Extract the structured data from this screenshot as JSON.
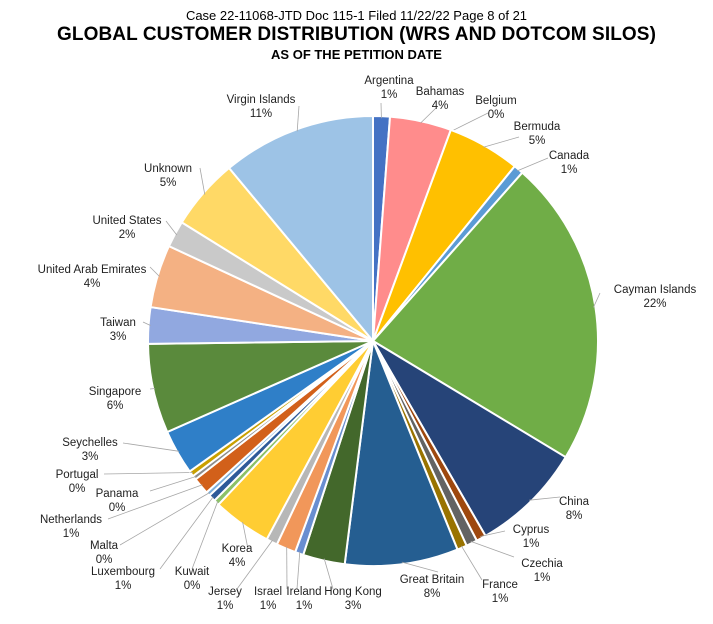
{
  "header": "Case 22-11068-JTD    Doc 115-1    Filed 11/22/22    Page 8 of 21",
  "chart_data": {
    "type": "pie",
    "title": "GLOBAL CUSTOMER DISTRIBUTION (WRS AND DOTCOM SILOS)",
    "subtitle": "AS OF THE PETITION DATE",
    "start_angle_deg": 0,
    "direction": "clockwise",
    "slices": [
      {
        "name": "Argentina",
        "label": "1%",
        "value": 1.2,
        "color": "#4472c4"
      },
      {
        "name": "Bahamas",
        "label": "4%",
        "value": 4.4,
        "color": "#ff8c8c"
      },
      {
        "name": "Belgium",
        "label": "0%",
        "value": 0.0,
        "color": "#ff8c00"
      },
      {
        "name": "Bermuda",
        "label": "5%",
        "value": 5.2,
        "color": "#ffc000"
      },
      {
        "name": "Canada",
        "label": "1%",
        "value": 0.7,
        "color": "#5b9bd5"
      },
      {
        "name": "Cayman Islands",
        "label": "22%",
        "value": 22.0,
        "color": "#70ad47"
      },
      {
        "name": "China",
        "label": "8%",
        "value": 8.0,
        "color": "#264478"
      },
      {
        "name": "Cyprus",
        "label": "1%",
        "value": 0.7,
        "color": "#9e480e"
      },
      {
        "name": "Czechia",
        "label": "1%",
        "value": 0.8,
        "color": "#636363"
      },
      {
        "name": "France",
        "label": "1%",
        "value": 0.7,
        "color": "#997300"
      },
      {
        "name": "Great Britain",
        "label": "8%",
        "value": 8.1,
        "color": "#255e91"
      },
      {
        "name": "Hong Kong",
        "label": "3%",
        "value": 3.0,
        "color": "#43682b"
      },
      {
        "name": "Ireland",
        "label": "1%",
        "value": 0.6,
        "color": "#698ed0"
      },
      {
        "name": "Israel",
        "label": "1%",
        "value": 1.4,
        "color": "#f1975a"
      },
      {
        "name": "Jersey",
        "label": "1%",
        "value": 0.8,
        "color": "#b7b7b7"
      },
      {
        "name": "Korea",
        "label": "4%",
        "value": 4.2,
        "color": "#ffcd33"
      },
      {
        "name": "Kuwait",
        "label": "0%",
        "value": 0.4,
        "color": "#8cc168"
      },
      {
        "name": "Luxembourg",
        "label": "1%",
        "value": 0.5,
        "color": "#2e5a99"
      },
      {
        "name": "Malta",
        "label": "0%",
        "value": 0.3,
        "color": "#7cafdd"
      },
      {
        "name": "Netherlands",
        "label": "1%",
        "value": 1.2,
        "color": "#d2601a"
      },
      {
        "name": "Panama",
        "label": "0%",
        "value": 0.3,
        "color": "#8d8d8d"
      },
      {
        "name": "Portugal",
        "label": "0%",
        "value": 0.4,
        "color": "#c9a000"
      },
      {
        "name": "Seychelles",
        "label": "3%",
        "value": 3.2,
        "color": "#2f7fc8"
      },
      {
        "name": "Singapore",
        "label": "6%",
        "value": 6.4,
        "color": "#5a8a3c"
      },
      {
        "name": "Taiwan",
        "label": "3%",
        "value": 2.6,
        "color": "#91a8e0"
      },
      {
        "name": "United Arab Emirates",
        "label": "4%",
        "value": 4.5,
        "color": "#f4b183"
      },
      {
        "name": "United States",
        "label": "2%",
        "value": 1.9,
        "color": "#c9c9c9"
      },
      {
        "name": "Unknown",
        "label": "5%",
        "value": 5.1,
        "color": "#ffd966"
      },
      {
        "name": "Virgin Islands",
        "label": "11%",
        "value": 11.0,
        "color": "#9dc3e6"
      }
    ]
  }
}
